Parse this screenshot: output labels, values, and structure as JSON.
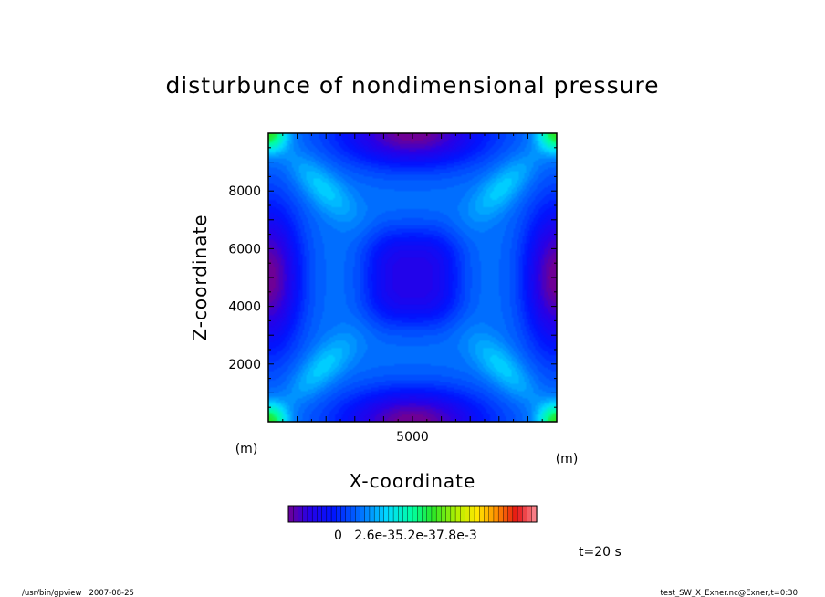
{
  "chart_data": {
    "type": "heatmap",
    "title": "disturbunce of nondimensional pressure",
    "xlabel": "X-coordinate",
    "ylabel": "Z-coordinate",
    "x_unit": "(m)",
    "y_unit": "(m)",
    "extra_unit": "(m)",
    "xlim": [
      0,
      10000
    ],
    "ylim": [
      0,
      10000
    ],
    "x_ticks": [
      5000
    ],
    "y_ticks": [
      2000,
      4000,
      6000,
      8000
    ],
    "colorbar": {
      "labels": [
        "0",
        "2.6e-3",
        "5.2e-3",
        "7.8e-3"
      ],
      "label_text": "0   2.6e-35.2e-37.8e-3",
      "range": [
        -0.0026,
        0.0104
      ],
      "levels": 52
    },
    "field_description_values": {
      "corners": 0.0052,
      "diagonal_lobes": 0.0026,
      "center_background": 0.0013,
      "center_minimum": -0.0013,
      "edge_midpoints": -0.0026
    }
  },
  "time_label": "t=20 s",
  "footer": {
    "left": "/usr/bin/gpview   2007-08-25",
    "right": "test_SW_X_Exner.nc@Exner,t=0:30"
  }
}
